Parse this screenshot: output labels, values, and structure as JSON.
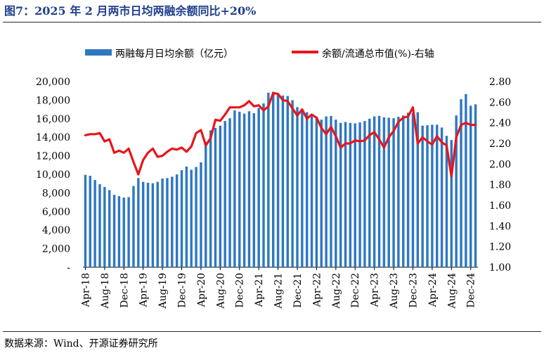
{
  "title": "图7：2025 年 2 月两市日均两融余额同比+20%",
  "source": "数据来源：Wind、开源证券研究所",
  "colors": {
    "bar": "#2e77c1",
    "line": "#e8151b",
    "title": "#1f3f8c"
  },
  "chart_data": {
    "type": "bar+line",
    "legend": [
      {
        "name": "两融每月日均余额（亿元）",
        "kind": "bar"
      },
      {
        "name": "余额/流通总市值(%)-右轴",
        "kind": "line"
      }
    ],
    "y_left": {
      "min": 0,
      "max": 20000,
      "ticks": [
        "-",
        "2,000",
        "4,000",
        "6,000",
        "8,000",
        "10,000",
        "12,000",
        "14,000",
        "16,000",
        "18,000",
        "20,000"
      ]
    },
    "y_right": {
      "min": 1.0,
      "max": 2.8,
      "ticks": [
        "1.00",
        "1.20",
        "1.40",
        "1.60",
        "1.80",
        "2.00",
        "2.20",
        "2.40",
        "2.60",
        "2.80"
      ]
    },
    "x_ticks": [
      {
        "i": 0,
        "label": "Apr-18"
      },
      {
        "i": 4,
        "label": "Aug-18"
      },
      {
        "i": 8,
        "label": "Dec-18"
      },
      {
        "i": 12,
        "label": "Apr-19"
      },
      {
        "i": 16,
        "label": "Aug-19"
      },
      {
        "i": 20,
        "label": "Dec-19"
      },
      {
        "i": 24,
        "label": "Apr-20"
      },
      {
        "i": 28,
        "label": "Aug-20"
      },
      {
        "i": 32,
        "label": "Dec-20"
      },
      {
        "i": 36,
        "label": "Apr-21"
      },
      {
        "i": 40,
        "label": "Aug-21"
      },
      {
        "i": 44,
        "label": "Dec-21"
      },
      {
        "i": 48,
        "label": "Apr-22"
      },
      {
        "i": 52,
        "label": "Aug-22"
      },
      {
        "i": 56,
        "label": "Dec-22"
      },
      {
        "i": 60,
        "label": "Apr-23"
      },
      {
        "i": 64,
        "label": "Aug-23"
      },
      {
        "i": 68,
        "label": "Dec-23"
      },
      {
        "i": 72,
        "label": "Apr-24"
      },
      {
        "i": 76,
        "label": "Aug-24"
      },
      {
        "i": 80,
        "label": "Dec-24"
      }
    ],
    "bar_values": [
      9950,
      9850,
      9400,
      8950,
      8650,
      8300,
      7800,
      7650,
      7500,
      7550,
      8750,
      9600,
      9200,
      9100,
      9050,
      9200,
      9550,
      9600,
      9750,
      10000,
      10450,
      10850,
      10500,
      10800,
      11300,
      13500,
      14750,
      15000,
      15250,
      15750,
      16050,
      16900,
      16750,
      16550,
      16800,
      16600,
      17150,
      17650,
      18800,
      18900,
      18600,
      18500,
      18450,
      18000,
      17250,
      17000,
      16700,
      16450,
      16200,
      15900,
      16250,
      16300,
      15900,
      15550,
      15650,
      15550,
      15500,
      15600,
      15750,
      16000,
      16250,
      16300,
      16150,
      16100,
      16050,
      16200,
      16350,
      16650,
      16600,
      16700,
      15250,
      15300,
      15350,
      15350,
      15050,
      14150,
      13700,
      16350,
      18100,
      18650,
      17400,
      17550
    ],
    "line_values": [
      2.28,
      2.29,
      2.29,
      2.3,
      2.22,
      2.24,
      2.11,
      2.13,
      2.11,
      2.15,
      2.02,
      1.9,
      2.04,
      2.11,
      2.15,
      2.07,
      2.08,
      2.12,
      2.15,
      2.14,
      2.16,
      2.12,
      2.17,
      2.3,
      2.33,
      2.18,
      2.25,
      2.43,
      2.42,
      2.48,
      2.55,
      2.55,
      2.55,
      2.57,
      2.61,
      2.56,
      2.57,
      2.52,
      2.56,
      2.69,
      2.68,
      2.62,
      2.61,
      2.54,
      2.47,
      2.53,
      2.44,
      2.48,
      2.45,
      2.35,
      2.29,
      2.36,
      2.27,
      2.16,
      2.2,
      2.2,
      2.23,
      2.22,
      2.23,
      2.28,
      2.31,
      2.24,
      2.16,
      2.26,
      2.32,
      2.41,
      2.45,
      2.46,
      2.55,
      2.2,
      2.26,
      2.22,
      2.19,
      2.27,
      2.21,
      2.18,
      1.88,
      2.26,
      2.38,
      2.4,
      2.38,
      2.38
    ]
  }
}
